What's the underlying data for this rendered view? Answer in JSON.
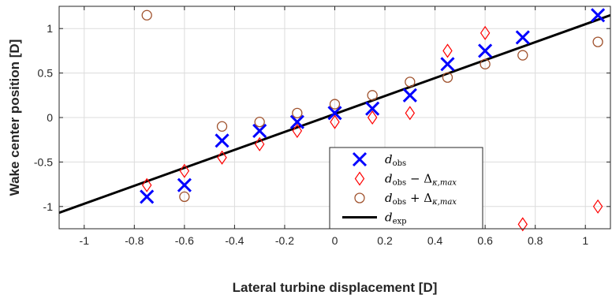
{
  "chart_data": {
    "type": "scatter",
    "xlabel": "Lateral turbine displacement [D]",
    "ylabel": "Wake center position [D]",
    "xlim": [
      -1.1,
      1.1
    ],
    "ylim": [
      -1.25,
      1.25
    ],
    "xticks": [
      -1,
      -0.8,
      -0.6,
      -0.4,
      -0.2,
      0,
      0.2,
      0.4,
      0.6,
      0.8,
      1
    ],
    "yticks": [
      -1,
      -0.5,
      0,
      0.5,
      1
    ],
    "grid": true,
    "legend_position": "lower-right",
    "series": [
      {
        "name": "d_obs",
        "marker": "x",
        "color": "#0000ff",
        "x": [
          -0.75,
          -0.6,
          -0.45,
          -0.3,
          -0.15,
          0,
          0.15,
          0.3,
          0.45,
          0.6,
          0.75,
          1.05
        ],
        "y": [
          -0.89,
          -0.76,
          -0.26,
          -0.15,
          -0.05,
          0.05,
          0.1,
          0.25,
          0.6,
          0.75,
          0.9,
          1.15
        ]
      },
      {
        "name": "d_obs - Δ_κ,max",
        "marker": "diamond",
        "color": "#ff0000",
        "x": [
          -0.75,
          -0.6,
          -0.45,
          -0.3,
          -0.15,
          0,
          0.15,
          0.3,
          0.45,
          0.6,
          0.75,
          1.05
        ],
        "y": [
          -0.76,
          -0.6,
          -0.45,
          -0.3,
          -0.15,
          -0.05,
          0.0,
          0.05,
          0.75,
          0.95,
          -1.2,
          -1.0
        ]
      },
      {
        "name": "d_obs + Δ_κ,max",
        "marker": "circle",
        "color": "#a0522d",
        "x": [
          -0.75,
          -0.6,
          -0.45,
          -0.3,
          -0.15,
          0,
          0.15,
          0.3,
          0.45,
          0.6,
          0.75,
          1.05
        ],
        "y": [
          1.15,
          -0.89,
          -0.1,
          -0.05,
          0.05,
          0.15,
          0.25,
          0.4,
          0.45,
          0.6,
          0.7,
          0.85
        ]
      },
      {
        "name": "d_exp",
        "marker": "line",
        "color": "#000000",
        "x": [
          -1.1,
          1.1
        ],
        "y": [
          -1.07,
          1.15
        ]
      }
    ],
    "legend": [
      {
        "main": "d",
        "sub": "obs",
        "rest": ""
      },
      {
        "main": "d",
        "sub": "obs",
        "rest": " − Δ",
        "sub2": "κ,max"
      },
      {
        "main": "d",
        "sub": "obs",
        "rest": " + Δ",
        "sub2": "κ,max"
      },
      {
        "main": "d",
        "sub": "exp",
        "rest": ""
      }
    ]
  }
}
